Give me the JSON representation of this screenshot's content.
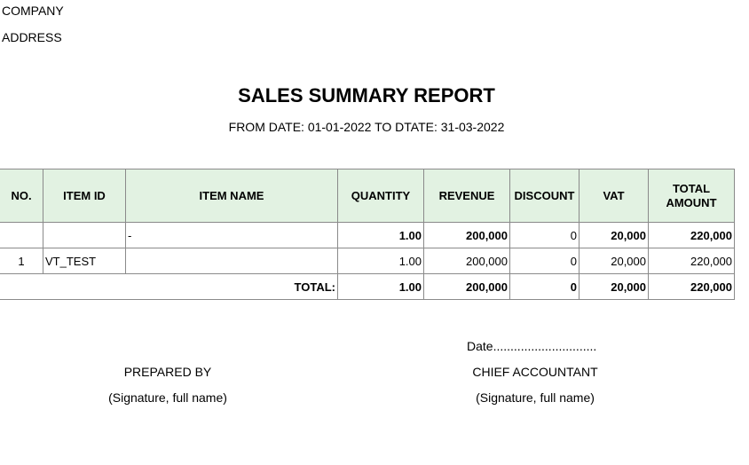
{
  "header": {
    "company": "COMPANY",
    "address": "ADDRESS",
    "title": "SALES SUMMARY REPORT",
    "date_range": "FROM DATE: 01-01-2022 TO DTATE: 31-03-2022"
  },
  "table": {
    "columns": {
      "no": "NO.",
      "item_id": "ITEM ID",
      "item_name": "ITEM NAME",
      "quantity": "QUANTITY",
      "revenue": "REVENUE",
      "discount": "DISCOUNT",
      "vat": "VAT",
      "total_amount": "TOTAL AMOUNT"
    },
    "group_row": {
      "no": "",
      "item_id": "",
      "item_name": "-",
      "quantity": "1.00",
      "revenue": "200,000",
      "discount": "0",
      "vat": "20,000",
      "total_amount": "220,000"
    },
    "rows": [
      {
        "no": "1",
        "item_id": "VT_TEST",
        "item_name": "",
        "quantity": "1.00",
        "revenue": "200,000",
        "discount": "0",
        "vat": "20,000",
        "total_amount": "220,000"
      }
    ],
    "total_row": {
      "label": "TOTAL:",
      "quantity": "1.00",
      "revenue": "200,000",
      "discount": "0",
      "vat": "20,000",
      "total_amount": "220,000"
    },
    "header_bg": "#e2f2e2",
    "border_color": "#8a8a8a"
  },
  "footer": {
    "date_line": "Date..............................",
    "prepared_by": "PREPARED BY",
    "prepared_by_signature": "(Signature, full name)",
    "chief_accountant": "CHIEF ACCOUNTANT",
    "chief_accountant_signature": "(Signature, full name)"
  }
}
